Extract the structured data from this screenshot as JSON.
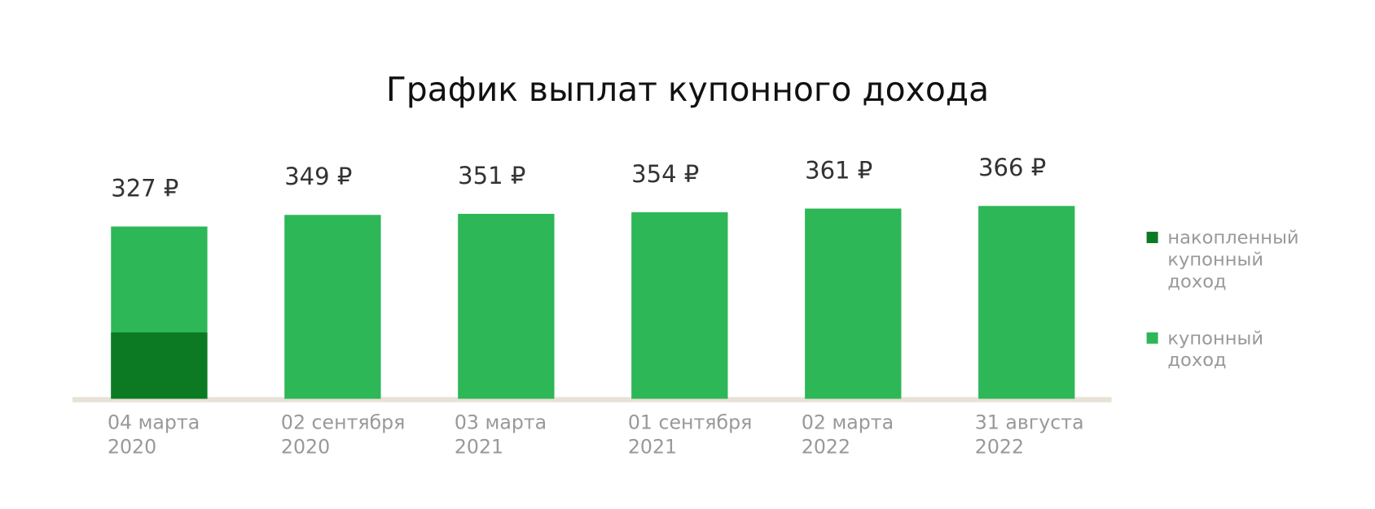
{
  "chart_data": {
    "type": "bar",
    "title": "График выплат купонного дохода",
    "categories": [
      "04 марта 2020",
      "02 сентября 2020",
      "03 марта 2021",
      "01 сентября 2021",
      "02 марта 2022",
      "31 августа 2022"
    ],
    "series": [
      {
        "name": "накопленный купонный доход",
        "color": "#0c7a22",
        "values": [
          126,
          null,
          null,
          null,
          null,
          null
        ]
      },
      {
        "name": "купонный доход",
        "color": "#2db757",
        "values": [
          327,
          349,
          351,
          354,
          361,
          366
        ],
        "value_labels": [
          "327 ₽",
          "349 ₽",
          "351 ₽",
          "354 ₽",
          "361 ₽",
          "366 ₽"
        ]
      }
    ],
    "legend": "right"
  }
}
